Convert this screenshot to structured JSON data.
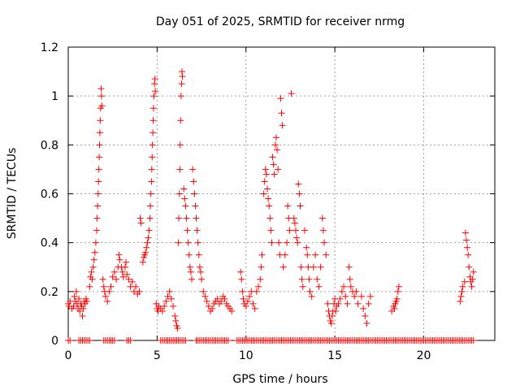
{
  "chart_data": {
    "type": "scatter",
    "title": "Day 051 of 2025, SRMTID for receiver nrmg",
    "xlabel": "GPS time / hours",
    "ylabel": "SRMTID / TECUs",
    "xlim": [
      0,
      24
    ],
    "ylim": [
      0,
      1.2
    ],
    "xticks": [
      0,
      5,
      10,
      15,
      20
    ],
    "xtick_labels": [
      "0",
      "5",
      "10",
      "15",
      "20"
    ],
    "yticks": [
      0,
      0.2,
      0.4,
      0.6,
      0.8,
      1.0,
      1.2
    ],
    "ytick_labels": [
      "0",
      "0.2",
      "0.4",
      "0.6",
      "0.8",
      "1",
      "1.2"
    ],
    "grid": true,
    "marker": "plus",
    "color": "#ff0000",
    "series": [
      {
        "name": "SRMTID",
        "points": [
          [
            0.0,
            0.15
          ],
          [
            0.05,
            0.14
          ],
          [
            0.1,
            0.16
          ],
          [
            0.2,
            0.13
          ],
          [
            0.3,
            0.14
          ],
          [
            0.35,
            0.18
          ],
          [
            0.4,
            0.16
          ],
          [
            0.45,
            0.2
          ],
          [
            0.5,
            0.15
          ],
          [
            0.55,
            0.13
          ],
          [
            0.6,
            0.17
          ],
          [
            0.65,
            0.12
          ],
          [
            0.7,
            0.15
          ],
          [
            0.75,
            0.14
          ],
          [
            0.8,
            0.1
          ],
          [
            0.85,
            0.13
          ],
          [
            0.9,
            0.16
          ],
          [
            0.95,
            0.15
          ],
          [
            1.0,
            0.17
          ],
          [
            1.05,
            0.16
          ],
          [
            1.2,
            0.22
          ],
          [
            1.25,
            0.26
          ],
          [
            1.3,
            0.28
          ],
          [
            1.35,
            0.25
          ],
          [
            1.4,
            0.3
          ],
          [
            1.45,
            0.33
          ],
          [
            1.5,
            0.36
          ],
          [
            1.55,
            0.4
          ],
          [
            1.6,
            0.45
          ],
          [
            1.62,
            0.5
          ],
          [
            1.65,
            0.55
          ],
          [
            1.68,
            0.6
          ],
          [
            1.7,
            0.65
          ],
          [
            1.72,
            0.7
          ],
          [
            1.74,
            0.75
          ],
          [
            1.76,
            0.8
          ],
          [
            1.78,
            0.85
          ],
          [
            1.8,
            0.9
          ],
          [
            1.82,
            0.95
          ],
          [
            1.85,
            1.03
          ],
          [
            1.87,
            1.0
          ],
          [
            1.9,
            0.96
          ],
          [
            1.95,
            0.25
          ],
          [
            2.0,
            0.22
          ],
          [
            2.05,
            0.2
          ],
          [
            2.1,
            0.18
          ],
          [
            2.2,
            0.16
          ],
          [
            2.3,
            0.2
          ],
          [
            2.4,
            0.22
          ],
          [
            2.5,
            0.26
          ],
          [
            2.6,
            0.28
          ],
          [
            2.7,
            0.25
          ],
          [
            2.8,
            0.3
          ],
          [
            2.85,
            0.35
          ],
          [
            2.9,
            0.33
          ],
          [
            3.0,
            0.3
          ],
          [
            3.05,
            0.28
          ],
          [
            3.1,
            0.26
          ],
          [
            3.2,
            0.3
          ],
          [
            3.25,
            0.32
          ],
          [
            3.3,
            0.27
          ],
          [
            3.4,
            0.25
          ],
          [
            3.5,
            0.22
          ],
          [
            3.6,
            0.24
          ],
          [
            3.7,
            0.2
          ],
          [
            3.8,
            0.22
          ],
          [
            3.9,
            0.19
          ],
          [
            4.0,
            0.2
          ],
          [
            4.05,
            0.5
          ],
          [
            4.1,
            0.48
          ],
          [
            4.2,
            0.32
          ],
          [
            4.25,
            0.34
          ],
          [
            4.3,
            0.35
          ],
          [
            4.35,
            0.36
          ],
          [
            4.4,
            0.38
          ],
          [
            4.45,
            0.4
          ],
          [
            4.5,
            0.42
          ],
          [
            4.55,
            0.45
          ],
          [
            4.6,
            0.5
          ],
          [
            4.62,
            0.55
          ],
          [
            4.65,
            0.6
          ],
          [
            4.68,
            0.65
          ],
          [
            4.7,
            0.7
          ],
          [
            4.72,
            0.75
          ],
          [
            4.74,
            0.8
          ],
          [
            4.76,
            0.85
          ],
          [
            4.78,
            0.9
          ],
          [
            4.8,
            0.95
          ],
          [
            4.82,
            1.0
          ],
          [
            4.85,
            1.05
          ],
          [
            4.88,
            1.07
          ],
          [
            4.9,
            1.02
          ],
          [
            4.95,
            0.15
          ],
          [
            5.0,
            0.13
          ],
          [
            5.05,
            0.12
          ],
          [
            5.1,
            0.14
          ],
          [
            5.2,
            0.13
          ],
          [
            5.3,
            0.12
          ],
          [
            5.4,
            0.14
          ],
          [
            5.5,
            0.16
          ],
          [
            5.6,
            0.18
          ],
          [
            5.7,
            0.2
          ],
          [
            5.8,
            0.17
          ],
          [
            5.9,
            0.14
          ],
          [
            6.0,
            0.1
          ],
          [
            6.05,
            0.08
          ],
          [
            6.1,
            0.06
          ],
          [
            6.15,
            0.05
          ],
          [
            6.2,
            0.4
          ],
          [
            6.22,
            0.5
          ],
          [
            6.25,
            0.6
          ],
          [
            6.28,
            0.7
          ],
          [
            6.3,
            0.8
          ],
          [
            6.32,
            0.9
          ],
          [
            6.35,
            1.0
          ],
          [
            6.38,
            1.05
          ],
          [
            6.4,
            1.1
          ],
          [
            6.42,
            1.08
          ],
          [
            6.5,
            0.62
          ],
          [
            6.55,
            0.58
          ],
          [
            6.6,
            0.55
          ],
          [
            6.65,
            0.5
          ],
          [
            6.7,
            0.45
          ],
          [
            6.75,
            0.4
          ],
          [
            6.8,
            0.35
          ],
          [
            6.85,
            0.3
          ],
          [
            6.9,
            0.28
          ],
          [
            6.95,
            0.25
          ],
          [
            7.0,
            0.7
          ],
          [
            7.05,
            0.65
          ],
          [
            7.1,
            0.6
          ],
          [
            7.15,
            0.55
          ],
          [
            7.2,
            0.5
          ],
          [
            7.25,
            0.45
          ],
          [
            7.3,
            0.4
          ],
          [
            7.35,
            0.35
          ],
          [
            7.4,
            0.3
          ],
          [
            7.45,
            0.28
          ],
          [
            7.5,
            0.25
          ],
          [
            7.6,
            0.2
          ],
          [
            7.7,
            0.18
          ],
          [
            7.8,
            0.16
          ],
          [
            7.9,
            0.14
          ],
          [
            8.0,
            0.12
          ],
          [
            8.1,
            0.13
          ],
          [
            8.2,
            0.15
          ],
          [
            8.3,
            0.16
          ],
          [
            8.4,
            0.17
          ],
          [
            8.5,
            0.15
          ],
          [
            8.6,
            0.16
          ],
          [
            8.7,
            0.18
          ],
          [
            8.8,
            0.17
          ],
          [
            8.9,
            0.15
          ],
          [
            9.0,
            0.14
          ],
          [
            9.1,
            0.13
          ],
          [
            9.2,
            0.12
          ],
          [
            9.7,
            0.28
          ],
          [
            9.75,
            0.25
          ],
          [
            9.8,
            0.2
          ],
          [
            9.85,
            0.17
          ],
          [
            9.9,
            0.15
          ],
          [
            10.0,
            0.14
          ],
          [
            10.1,
            0.16
          ],
          [
            10.2,
            0.18
          ],
          [
            10.3,
            0.2
          ],
          [
            10.4,
            0.15
          ],
          [
            10.5,
            0.13
          ],
          [
            10.6,
            0.2
          ],
          [
            10.7,
            0.22
          ],
          [
            10.8,
            0.25
          ],
          [
            10.85,
            0.3
          ],
          [
            10.9,
            0.35
          ],
          [
            11.0,
            0.6
          ],
          [
            11.05,
            0.65
          ],
          [
            11.1,
            0.7
          ],
          [
            11.15,
            0.68
          ],
          [
            11.2,
            0.62
          ],
          [
            11.25,
            0.58
          ],
          [
            11.3,
            0.55
          ],
          [
            11.35,
            0.5
          ],
          [
            11.4,
            0.45
          ],
          [
            11.45,
            0.4
          ],
          [
            11.5,
            0.75
          ],
          [
            11.55,
            0.72
          ],
          [
            11.6,
            0.68
          ],
          [
            11.65,
            0.8
          ],
          [
            11.7,
            0.83
          ],
          [
            11.75,
            0.78
          ],
          [
            11.8,
            0.7
          ],
          [
            11.85,
            0.4
          ],
          [
            11.9,
            0.35
          ],
          [
            11.95,
            0.99
          ],
          [
            12.0,
            0.93
          ],
          [
            12.05,
            0.88
          ],
          [
            12.1,
            0.3
          ],
          [
            12.2,
            0.35
          ],
          [
            12.3,
            0.4
          ],
          [
            12.35,
            0.55
          ],
          [
            12.4,
            0.5
          ],
          [
            12.45,
            0.45
          ],
          [
            12.55,
            1.01
          ],
          [
            12.7,
            0.5
          ],
          [
            12.75,
            0.48
          ],
          [
            12.8,
            0.45
          ],
          [
            12.85,
            0.42
          ],
          [
            12.9,
            0.4
          ],
          [
            12.95,
            0.64
          ],
          [
            13.0,
            0.6
          ],
          [
            13.05,
            0.55
          ],
          [
            13.1,
            0.3
          ],
          [
            13.15,
            0.25
          ],
          [
            13.2,
            0.22
          ],
          [
            13.3,
            0.45
          ],
          [
            13.4,
            0.38
          ],
          [
            13.45,
            0.35
          ],
          [
            13.5,
            0.3
          ],
          [
            13.55,
            0.25
          ],
          [
            13.6,
            0.2
          ],
          [
            13.7,
            0.18
          ],
          [
            13.8,
            0.3
          ],
          [
            13.9,
            0.35
          ],
          [
            14.0,
            0.25
          ],
          [
            14.1,
            0.22
          ],
          [
            14.2,
            0.3
          ],
          [
            14.3,
            0.5
          ],
          [
            14.35,
            0.45
          ],
          [
            14.4,
            0.4
          ],
          [
            14.5,
            0.35
          ],
          [
            14.6,
            0.15
          ],
          [
            14.65,
            0.12
          ],
          [
            14.7,
            0.1
          ],
          [
            14.75,
            0.08
          ],
          [
            14.8,
            0.07
          ],
          [
            14.85,
            0.1
          ],
          [
            14.9,
            0.12
          ],
          [
            14.95,
            0.15
          ],
          [
            15.0,
            0.17
          ],
          [
            15.05,
            0.12
          ],
          [
            15.1,
            0.14
          ],
          [
            15.2,
            0.15
          ],
          [
            15.3,
            0.17
          ],
          [
            15.4,
            0.2
          ],
          [
            15.5,
            0.22
          ],
          [
            15.6,
            0.18
          ],
          [
            15.7,
            0.15
          ],
          [
            15.8,
            0.3
          ],
          [
            15.85,
            0.25
          ],
          [
            15.9,
            0.22
          ],
          [
            16.0,
            0.2
          ],
          [
            16.1,
            0.18
          ],
          [
            16.2,
            0.2
          ],
          [
            16.3,
            0.15
          ],
          [
            16.5,
            0.18
          ],
          [
            16.6,
            0.13
          ],
          [
            16.7,
            0.1
          ],
          [
            16.8,
            0.07
          ],
          [
            16.9,
            0.15
          ],
          [
            17.0,
            0.18
          ],
          [
            18.2,
            0.12
          ],
          [
            18.3,
            0.14
          ],
          [
            18.35,
            0.13
          ],
          [
            18.4,
            0.15
          ],
          [
            18.45,
            0.16
          ],
          [
            18.5,
            0.17
          ],
          [
            18.55,
            0.2
          ],
          [
            18.6,
            0.22
          ],
          [
            22.05,
            0.16
          ],
          [
            22.1,
            0.18
          ],
          [
            22.15,
            0.2
          ],
          [
            22.2,
            0.22
          ],
          [
            22.3,
            0.24
          ],
          [
            22.35,
            0.44
          ],
          [
            22.4,
            0.41
          ],
          [
            22.45,
            0.38
          ],
          [
            22.5,
            0.35
          ],
          [
            22.55,
            0.3
          ],
          [
            22.6,
            0.26
          ],
          [
            22.65,
            0.24
          ],
          [
            22.7,
            0.22
          ],
          [
            22.75,
            0.25
          ],
          [
            22.8,
            0.28
          ]
        ]
      }
    ],
    "zero_band": {
      "y": 0,
      "x_ranges": [
        [
          0.0,
          0.1
        ],
        [
          0.6,
          1.2
        ],
        [
          2.0,
          2.6
        ],
        [
          3.3,
          3.5
        ],
        [
          5.2,
          6.6
        ],
        [
          7.2,
          9.0
        ],
        [
          9.5,
          22.8
        ]
      ]
    }
  }
}
